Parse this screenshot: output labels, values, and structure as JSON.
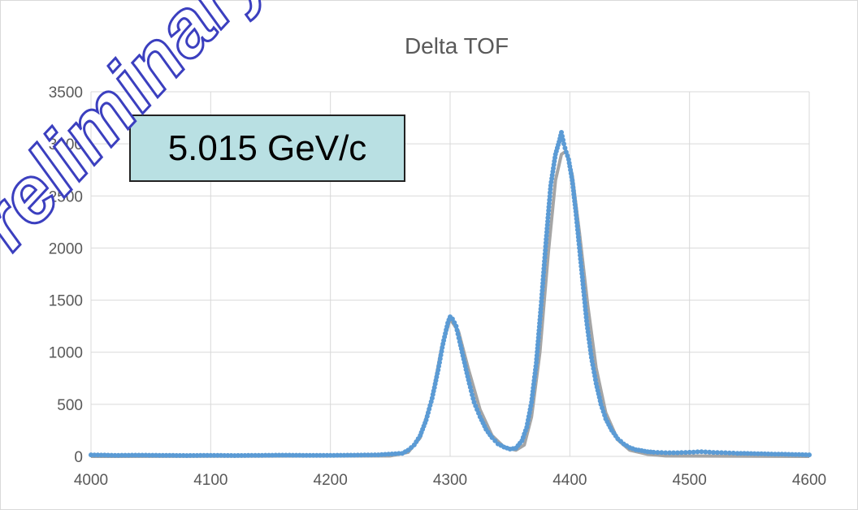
{
  "chart_data": {
    "type": "scatter",
    "title": "Delta TOF",
    "xlabel": "",
    "ylabel": "",
    "xlim": [
      4000,
      4600
    ],
    "ylim": [
      0,
      3500
    ],
    "x_ticks": [
      "4000",
      "4100",
      "4200",
      "4300",
      "4400",
      "4500",
      "4600"
    ],
    "y_ticks": [
      "0",
      "500",
      "1000",
      "1500",
      "2000",
      "2500",
      "3000",
      "3500"
    ],
    "grid": true,
    "legend": "none",
    "series": [
      {
        "kind": "points",
        "color": "#5b9bd5",
        "x": [
          4000,
          4020,
          4040,
          4060,
          4080,
          4100,
          4120,
          4140,
          4160,
          4180,
          4200,
          4220,
          4240,
          4260,
          4265,
          4270,
          4275,
          4280,
          4285,
          4290,
          4294,
          4298,
          4300,
          4302,
          4305,
          4308,
          4312,
          4316,
          4320,
          4325,
          4330,
          4335,
          4340,
          4345,
          4350,
          4355,
          4360,
          4364,
          4368,
          4372,
          4376,
          4380,
          4384,
          4388,
          4391,
          4393,
          4395,
          4397,
          4399,
          4402,
          4405,
          4408,
          4411,
          4414,
          4418,
          4422,
          4426,
          4430,
          4435,
          4440,
          4445,
          4450,
          4455,
          4460,
          4465,
          4470,
          4480,
          4490,
          4500,
          4510,
          4520,
          4530,
          4540,
          4560,
          4580,
          4600
        ],
        "y": [
          15,
          10,
          12,
          10,
          8,
          10,
          8,
          10,
          12,
          10,
          10,
          12,
          15,
          30,
          60,
          110,
          200,
          350,
          560,
          830,
          1080,
          1280,
          1340,
          1320,
          1250,
          1100,
          900,
          700,
          520,
          380,
          260,
          180,
          120,
          90,
          70,
          80,
          150,
          280,
          520,
          900,
          1450,
          2050,
          2600,
          2900,
          3020,
          3110,
          3000,
          2920,
          2850,
          2650,
          2350,
          2000,
          1650,
          1300,
          950,
          700,
          500,
          360,
          250,
          170,
          120,
          85,
          65,
          55,
          45,
          40,
          35,
          35,
          40,
          45,
          38,
          35,
          30,
          25,
          20,
          15
        ]
      },
      {
        "kind": "fit-line",
        "color": "#a5a5a5",
        "x": [
          4000,
          4250,
          4265,
          4275,
          4285,
          4293,
          4300,
          4307,
          4315,
          4325,
          4335,
          4345,
          4355,
          4362,
          4368,
          4375,
          4382,
          4388,
          4393,
          4397,
          4402,
          4408,
          4415,
          4422,
          4430,
          4440,
          4450,
          4465,
          4480,
          4600
        ],
        "y": [
          0,
          5,
          40,
          180,
          560,
          1050,
          1320,
          1200,
          850,
          450,
          200,
          90,
          60,
          110,
          380,
          1000,
          1950,
          2650,
          2900,
          2930,
          2700,
          2150,
          1450,
          850,
          420,
          160,
          60,
          20,
          5,
          0
        ]
      }
    ],
    "annotations": [
      "5.015 GeV/c",
      "Preliminary"
    ]
  },
  "annotation_box": {
    "text": "5.015 GeV/c"
  },
  "watermark": {
    "text": "Preliminary"
  }
}
